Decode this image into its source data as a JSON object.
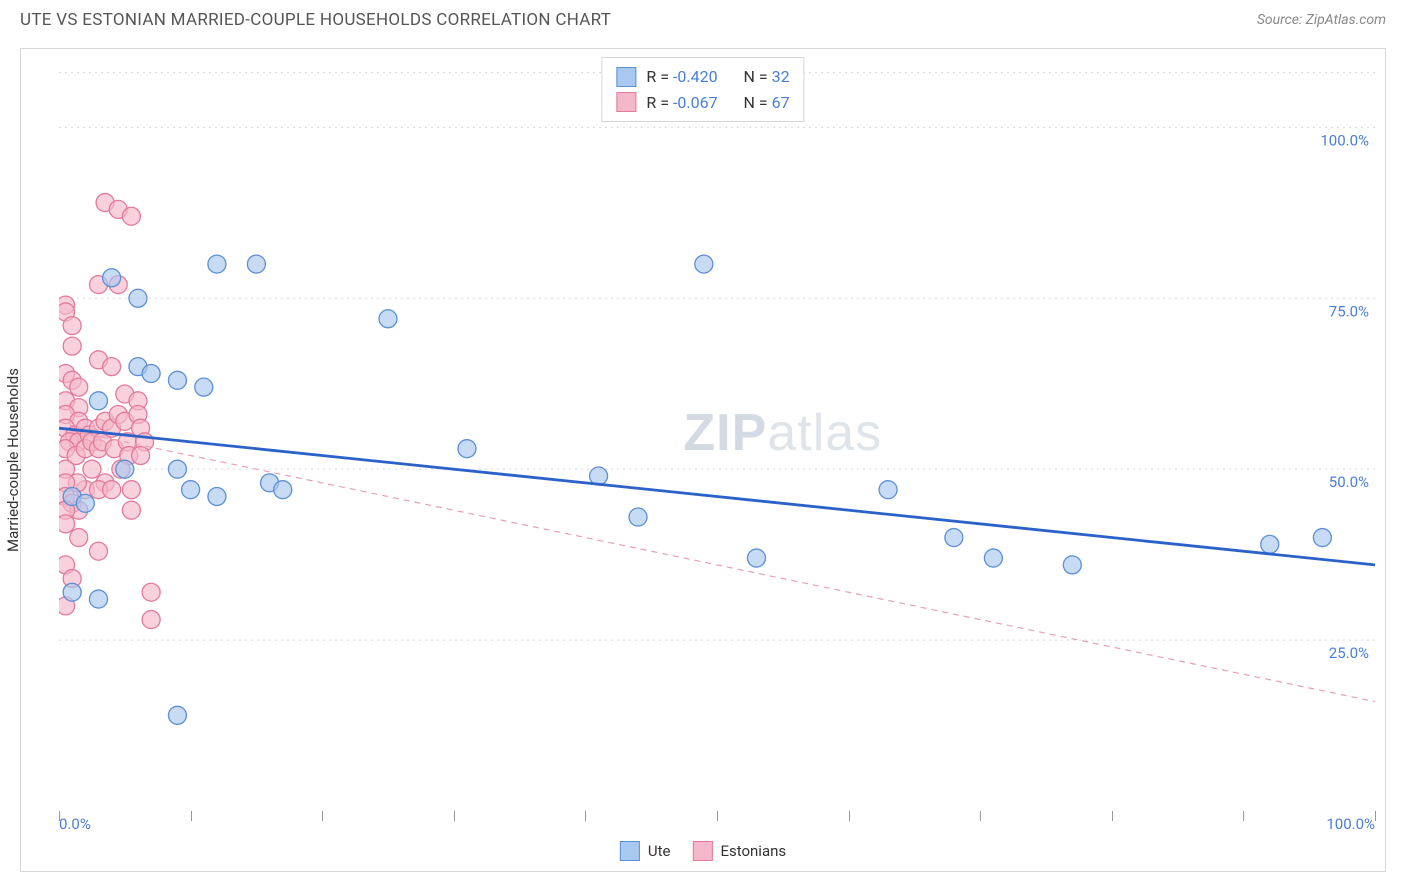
{
  "header": {
    "title": "UTE VS ESTONIAN MARRIED-COUPLE HOUSEHOLDS CORRELATION CHART",
    "source": "Source: ZipAtlas.com"
  },
  "chart": {
    "type": "scatter",
    "ylabel": "Married-couple Households",
    "watermark": {
      "bold": "ZIP",
      "light": "atlas"
    },
    "background_color": "#ffffff",
    "grid_color": "#d6d6d6",
    "axis_color": "#999999",
    "xlim": [
      0,
      100
    ],
    "ylim": [
      0,
      110
    ],
    "y_ticks": [
      {
        "v": 25,
        "label": "25.0%"
      },
      {
        "v": 50,
        "label": "50.0%"
      },
      {
        "v": 75,
        "label": "75.0%"
      },
      {
        "v": 100,
        "label": "100.0%"
      }
    ],
    "x_ticks": [
      0,
      10,
      20,
      30,
      40,
      50,
      60,
      70,
      80,
      90,
      100
    ],
    "x_labels": [
      {
        "v": 0,
        "label": "0.0%"
      },
      {
        "v": 100,
        "label": "100.0%"
      }
    ],
    "marker_radius": 9,
    "series": {
      "ute": {
        "label": "Ute",
        "fill": "#a9c8ef",
        "stroke": "#5b8fd6",
        "r_value": "-0.420",
        "n_value": "32",
        "trend": {
          "x1": 0,
          "y1": 56,
          "x2": 100,
          "y2": 36,
          "color": "#2a62c9",
          "width": 2.8,
          "dash": "none"
        },
        "points": [
          [
            1,
            32
          ],
          [
            3,
            31
          ],
          [
            1,
            46
          ],
          [
            2,
            45
          ],
          [
            4,
            78
          ],
          [
            6,
            75
          ],
          [
            12,
            80
          ],
          [
            15,
            80
          ],
          [
            3,
            60
          ],
          [
            6,
            65
          ],
          [
            7,
            64
          ],
          [
            9,
            63
          ],
          [
            11,
            62
          ],
          [
            5,
            50
          ],
          [
            9,
            50
          ],
          [
            10,
            47
          ],
          [
            12,
            46
          ],
          [
            16,
            48
          ],
          [
            17,
            47
          ],
          [
            25,
            72
          ],
          [
            31,
            53
          ],
          [
            41,
            49
          ],
          [
            44,
            43
          ],
          [
            49,
            80
          ],
          [
            53,
            37
          ],
          [
            63,
            47
          ],
          [
            68,
            40
          ],
          [
            71,
            37
          ],
          [
            77,
            36
          ],
          [
            92,
            39
          ],
          [
            96,
            40
          ],
          [
            9,
            14
          ]
        ]
      },
      "estonians": {
        "label": "Estonians",
        "fill": "#f5b8ca",
        "stroke": "#e47a9a",
        "r_value": "-0.067",
        "n_value": "67",
        "trend": {
          "x1": 0,
          "y1": 56,
          "x2": 100,
          "y2": 16,
          "color": "#e8a0b5",
          "width": 1.2,
          "dash": "6 5"
        },
        "points": [
          [
            0.5,
            74
          ],
          [
            0.5,
            73
          ],
          [
            1,
            71
          ],
          [
            1,
            68
          ],
          [
            0.5,
            64
          ],
          [
            1,
            63
          ],
          [
            1.5,
            62
          ],
          [
            0.5,
            60
          ],
          [
            1.5,
            59
          ],
          [
            0.5,
            58
          ],
          [
            1.5,
            57
          ],
          [
            0.5,
            56
          ],
          [
            1.2,
            55
          ],
          [
            0.8,
            54
          ],
          [
            1.5,
            54
          ],
          [
            2,
            56
          ],
          [
            2.3,
            55
          ],
          [
            0.5,
            53
          ],
          [
            1.3,
            52
          ],
          [
            2,
            53
          ],
          [
            2.5,
            54
          ],
          [
            3,
            56
          ],
          [
            3,
            53
          ],
          [
            3.5,
            57
          ],
          [
            3.3,
            54
          ],
          [
            4,
            56
          ],
          [
            4.2,
            53
          ],
          [
            4.5,
            58
          ],
          [
            5,
            57
          ],
          [
            5.2,
            54
          ],
          [
            5.3,
            52
          ],
          [
            4.7,
            50
          ],
          [
            3.5,
            48
          ],
          [
            2.5,
            50
          ],
          [
            2,
            47
          ],
          [
            1.4,
            48
          ],
          [
            0.5,
            50
          ],
          [
            0.5,
            48
          ],
          [
            0.5,
            46
          ],
          [
            1,
            45
          ],
          [
            1.5,
            44
          ],
          [
            0.5,
            44
          ],
          [
            3,
            47
          ],
          [
            4,
            47
          ],
          [
            5.5,
            47
          ],
          [
            0.5,
            42
          ],
          [
            1.5,
            40
          ],
          [
            3,
            38
          ],
          [
            0.5,
            36
          ],
          [
            1,
            34
          ],
          [
            3.5,
            89
          ],
          [
            4.5,
            88
          ],
          [
            5.5,
            87
          ],
          [
            3,
            77
          ],
          [
            4.5,
            77
          ],
          [
            3,
            66
          ],
          [
            4,
            65
          ],
          [
            5,
            61
          ],
          [
            6,
            60
          ],
          [
            6,
            58
          ],
          [
            6.2,
            56
          ],
          [
            6.5,
            54
          ],
          [
            6.2,
            52
          ],
          [
            5.5,
            44
          ],
          [
            7,
            32
          ],
          [
            7,
            28
          ],
          [
            0.5,
            30
          ]
        ]
      }
    },
    "legend_top": {
      "r_label": "R =",
      "n_label": "N ="
    },
    "legend_bottom": [
      {
        "key": "ute"
      },
      {
        "key": "estonians"
      }
    ]
  }
}
